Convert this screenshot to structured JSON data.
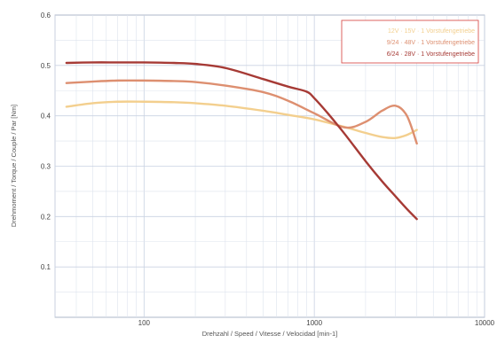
{
  "chart_data": {
    "type": "line",
    "title": "",
    "xlabel": "Drehzahl / Speed / Vitesse / Velocidad [min-1]",
    "ylabel": "Drehmoment / Torque / Couple / Par [Nm]",
    "x_scale": "log",
    "xlim": [
      30,
      10000
    ],
    "ylim": [
      0,
      0.6
    ],
    "grid": true,
    "legend_position": "top-right",
    "x_ticks": [
      {
        "value": 100,
        "label": "100"
      },
      {
        "value": 1000,
        "label": "1000"
      },
      {
        "value": 10000,
        "label": "10000"
      }
    ],
    "y_ticks": [
      {
        "value": 0.1,
        "label": "0.1"
      },
      {
        "value": 0.2,
        "label": "0.2"
      },
      {
        "value": 0.3,
        "label": "0.3"
      },
      {
        "value": 0.4,
        "label": "0.4"
      },
      {
        "value": 0.5,
        "label": "0.5"
      },
      {
        "value": 0.6,
        "label": "0.6"
      }
    ],
    "series": [
      {
        "name": "12V · 15V · 1 Vorstufengetriebe",
        "color": "#f3cf8e",
        "x": [
          35,
          50,
          70,
          100,
          150,
          200,
          300,
          500,
          700,
          1000,
          1500,
          2000,
          2500,
          3000,
          3500,
          4000
        ],
        "y": [
          0.418,
          0.425,
          0.428,
          0.428,
          0.427,
          0.425,
          0.42,
          0.41,
          0.402,
          0.393,
          0.378,
          0.366,
          0.358,
          0.356,
          0.362,
          0.372
        ]
      },
      {
        "name": "9/24 · 48V · 1 Vorstufengetriebe",
        "color": "#dd8f70",
        "x": [
          35,
          50,
          70,
          100,
          150,
          200,
          300,
          500,
          700,
          1000,
          1500,
          2000,
          2500,
          3000,
          3500,
          4000
        ],
        "y": [
          0.465,
          0.468,
          0.47,
          0.47,
          0.469,
          0.467,
          0.46,
          0.447,
          0.43,
          0.405,
          0.377,
          0.388,
          0.41,
          0.42,
          0.4,
          0.345
        ]
      },
      {
        "name": "6/24 · 28V · 1 Vorstufengetriebe",
        "color": "#a63a35",
        "x": [
          35,
          50,
          70,
          100,
          150,
          200,
          300,
          500,
          700,
          900,
          1000,
          1200,
          1500,
          2000,
          2500,
          3000,
          3500,
          4000
        ],
        "y": [
          0.505,
          0.506,
          0.506,
          0.506,
          0.505,
          0.503,
          0.495,
          0.473,
          0.458,
          0.448,
          0.435,
          0.405,
          0.365,
          0.31,
          0.27,
          0.24,
          0.215,
          0.195
        ]
      }
    ]
  }
}
